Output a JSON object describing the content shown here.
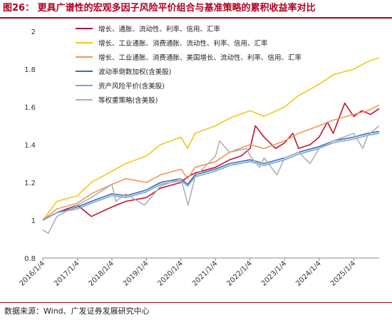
{
  "figure": {
    "title": "图26：  更具广谱性的宏观多因子风险平价组合与基准策略的累积收益率对比",
    "source": "数据来源：Wind、广发证券发展研究中心"
  },
  "colors": {
    "title": "#b0001e",
    "series": [
      "#c8102e",
      "#f5c518",
      "#f0955a",
      "#3a6ab8",
      "#6fa8dc",
      "#b0b0b0"
    ]
  },
  "chart_data": {
    "type": "line",
    "title": "",
    "xlabel": "",
    "ylabel": "",
    "ylim": [
      0.8,
      2.0
    ],
    "yticks": [
      0.8,
      1,
      1.2,
      1.4,
      1.6,
      1.8,
      2
    ],
    "ytick_labels": [
      "0.8",
      "1",
      "1.2",
      "1.4",
      "1.6",
      "1.8",
      "2"
    ],
    "xlim": [
      "2016-01-04",
      "2025-09-30"
    ],
    "xticks": [
      "2016-01-04",
      "2017-01-04",
      "2018-01-04",
      "2019-01-04",
      "2020-01-04",
      "2021-01-04",
      "2022-01-04",
      "2023-01-04",
      "2024-01-04",
      "2025-01-04"
    ],
    "xtick_labels": [
      "2016/1/4",
      "2017/1/4",
      "2018/1/4",
      "2019/1/4",
      "2020/1/4",
      "2021/1/4",
      "2022/1/4",
      "2023/1/4",
      "2024/1/4",
      "2025/1/4"
    ],
    "grid": false,
    "legend_position": "top-left",
    "series": [
      {
        "name": "增长、通胀、流动性、利率、信用、汇率",
        "color": "#c8102e",
        "points": [
          [
            "2016-01-04",
            1.0
          ],
          [
            "2016-06-01",
            1.04
          ],
          [
            "2017-01-04",
            1.08
          ],
          [
            "2017-06-01",
            1.02
          ],
          [
            "2018-01-04",
            1.07
          ],
          [
            "2018-06-01",
            1.1
          ],
          [
            "2019-01-04",
            1.12
          ],
          [
            "2019-06-01",
            1.17
          ],
          [
            "2020-01-04",
            1.2
          ],
          [
            "2020-03-15",
            1.23
          ],
          [
            "2020-06-01",
            1.25
          ],
          [
            "2021-01-04",
            1.28
          ],
          [
            "2021-06-01",
            1.32
          ],
          [
            "2021-10-01",
            1.34
          ],
          [
            "2022-01-04",
            1.38
          ],
          [
            "2022-03-01",
            1.5
          ],
          [
            "2022-06-01",
            1.44
          ],
          [
            "2022-10-01",
            1.38
          ],
          [
            "2023-01-04",
            1.41
          ],
          [
            "2023-04-01",
            1.46
          ],
          [
            "2023-06-01",
            1.38
          ],
          [
            "2023-10-01",
            1.4
          ],
          [
            "2024-01-04",
            1.44
          ],
          [
            "2024-04-01",
            1.52
          ],
          [
            "2024-06-01",
            1.46
          ],
          [
            "2024-10-01",
            1.62
          ],
          [
            "2025-01-04",
            1.55
          ],
          [
            "2025-04-01",
            1.58
          ],
          [
            "2025-07-01",
            1.56
          ],
          [
            "2025-09-30",
            1.59
          ]
        ]
      },
      {
        "name": "增长、工业通胀、消费通胀、流动性、利率、信用、汇率",
        "color": "#f5c518",
        "points": [
          [
            "2016-01-04",
            1.0
          ],
          [
            "2016-06-01",
            1.1
          ],
          [
            "2017-01-04",
            1.13
          ],
          [
            "2017-06-01",
            1.2
          ],
          [
            "2018-01-04",
            1.26
          ],
          [
            "2018-06-01",
            1.3
          ],
          [
            "2019-01-04",
            1.34
          ],
          [
            "2019-06-01",
            1.4
          ],
          [
            "2020-01-04",
            1.44
          ],
          [
            "2020-03-15",
            1.38
          ],
          [
            "2020-06-01",
            1.46
          ],
          [
            "2021-01-04",
            1.5
          ],
          [
            "2021-06-01",
            1.54
          ],
          [
            "2022-01-04",
            1.58
          ],
          [
            "2022-06-01",
            1.55
          ],
          [
            "2023-01-04",
            1.6
          ],
          [
            "2023-06-01",
            1.66
          ],
          [
            "2024-01-04",
            1.72
          ],
          [
            "2024-06-01",
            1.77
          ],
          [
            "2025-01-04",
            1.8
          ],
          [
            "2025-06-01",
            1.84
          ],
          [
            "2025-09-30",
            1.86
          ]
        ]
      },
      {
        "name": "增长、工业通胀、消费通胀、美国增长、流动性、利率、信用、汇率",
        "color": "#f0955a",
        "points": [
          [
            "2016-01-04",
            1.0
          ],
          [
            "2016-06-01",
            1.06
          ],
          [
            "2017-01-04",
            1.09
          ],
          [
            "2017-06-01",
            1.14
          ],
          [
            "2018-01-04",
            1.19
          ],
          [
            "2018-06-01",
            1.22
          ],
          [
            "2019-01-04",
            1.2
          ],
          [
            "2019-06-01",
            1.24
          ],
          [
            "2020-01-04",
            1.27
          ],
          [
            "2020-03-15",
            1.22
          ],
          [
            "2020-06-01",
            1.28
          ],
          [
            "2021-01-04",
            1.31
          ],
          [
            "2021-06-01",
            1.36
          ],
          [
            "2022-01-04",
            1.4
          ],
          [
            "2022-06-01",
            1.38
          ],
          [
            "2023-01-04",
            1.42
          ],
          [
            "2023-06-01",
            1.46
          ],
          [
            "2024-01-04",
            1.5
          ],
          [
            "2024-06-01",
            1.53
          ],
          [
            "2025-01-04",
            1.56
          ],
          [
            "2025-06-01",
            1.58
          ],
          [
            "2025-09-30",
            1.61
          ]
        ]
      },
      {
        "name": "波动率倒数加权(含美股)",
        "color": "#3a6ab8",
        "points": [
          [
            "2016-01-04",
            1.0
          ],
          [
            "2016-06-01",
            1.04
          ],
          [
            "2017-01-04",
            1.07
          ],
          [
            "2017-06-01",
            1.1
          ],
          [
            "2018-01-04",
            1.14
          ],
          [
            "2018-06-01",
            1.13
          ],
          [
            "2019-01-04",
            1.16
          ],
          [
            "2019-06-01",
            1.2
          ],
          [
            "2020-01-04",
            1.22
          ],
          [
            "2020-03-15",
            1.19
          ],
          [
            "2020-06-01",
            1.24
          ],
          [
            "2021-01-04",
            1.27
          ],
          [
            "2021-06-01",
            1.3
          ],
          [
            "2022-01-04",
            1.32
          ],
          [
            "2022-06-01",
            1.3
          ],
          [
            "2023-01-04",
            1.33
          ],
          [
            "2023-06-01",
            1.36
          ],
          [
            "2024-01-04",
            1.39
          ],
          [
            "2024-06-01",
            1.42
          ],
          [
            "2025-01-04",
            1.44
          ],
          [
            "2025-06-01",
            1.46
          ],
          [
            "2025-09-30",
            1.47
          ]
        ]
      },
      {
        "name": "资产风险平价(含美股)",
        "color": "#6fa8dc",
        "points": [
          [
            "2016-01-04",
            1.0
          ],
          [
            "2016-06-01",
            1.04
          ],
          [
            "2017-01-04",
            1.06
          ],
          [
            "2017-06-01",
            1.09
          ],
          [
            "2018-01-04",
            1.13
          ],
          [
            "2018-06-01",
            1.12
          ],
          [
            "2019-01-04",
            1.15
          ],
          [
            "2019-06-01",
            1.19
          ],
          [
            "2020-01-04",
            1.21
          ],
          [
            "2020-03-15",
            1.18
          ],
          [
            "2020-06-01",
            1.23
          ],
          [
            "2021-01-04",
            1.26
          ],
          [
            "2021-06-01",
            1.29
          ],
          [
            "2022-01-04",
            1.31
          ],
          [
            "2022-06-01",
            1.29
          ],
          [
            "2023-01-04",
            1.32
          ],
          [
            "2023-06-01",
            1.35
          ],
          [
            "2024-01-04",
            1.38
          ],
          [
            "2024-06-01",
            1.41
          ],
          [
            "2025-01-04",
            1.43
          ],
          [
            "2025-06-01",
            1.45
          ],
          [
            "2025-09-30",
            1.46
          ]
        ]
      },
      {
        "name": "等权重策略(含美股)",
        "color": "#b0b0b0",
        "points": [
          [
            "2016-01-04",
            0.95
          ],
          [
            "2016-03-01",
            0.93
          ],
          [
            "2016-06-01",
            1.02
          ],
          [
            "2017-01-04",
            1.08
          ],
          [
            "2017-06-01",
            1.12
          ],
          [
            "2018-01-04",
            1.19
          ],
          [
            "2018-02-15",
            1.1
          ],
          [
            "2018-06-01",
            1.14
          ],
          [
            "2018-12-15",
            1.08
          ],
          [
            "2019-06-01",
            1.18
          ],
          [
            "2020-01-04",
            1.22
          ],
          [
            "2020-03-20",
            1.08
          ],
          [
            "2020-06-01",
            1.23
          ],
          [
            "2021-01-04",
            1.34
          ],
          [
            "2021-02-15",
            1.42
          ],
          [
            "2021-06-01",
            1.36
          ],
          [
            "2021-12-01",
            1.38
          ],
          [
            "2022-01-04",
            1.34
          ],
          [
            "2022-04-15",
            1.28
          ],
          [
            "2022-06-01",
            1.33
          ],
          [
            "2022-10-15",
            1.24
          ],
          [
            "2023-01-04",
            1.33
          ],
          [
            "2023-06-01",
            1.36
          ],
          [
            "2023-10-01",
            1.3
          ],
          [
            "2024-01-04",
            1.38
          ],
          [
            "2024-06-01",
            1.42
          ],
          [
            "2025-01-04",
            1.46
          ],
          [
            "2025-04-10",
            1.38
          ],
          [
            "2025-06-01",
            1.45
          ],
          [
            "2025-09-30",
            1.5
          ]
        ]
      }
    ]
  }
}
